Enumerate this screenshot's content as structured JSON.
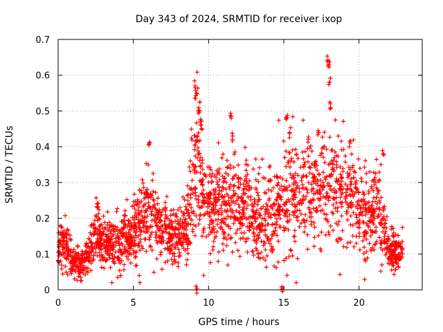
{
  "chart_data": {
    "type": "scatter",
    "title": "Day 343 of 2024, SRMTID for receiver ixop",
    "xlabel": "GPS time / hours",
    "ylabel": "SRMTID / TECUs",
    "xlim": [
      0,
      24.2
    ],
    "ylim": [
      0,
      0.7
    ],
    "xticks": [
      0,
      5,
      10,
      15,
      20
    ],
    "yticks": [
      0,
      0.1,
      0.2,
      0.3,
      0.4,
      0.5,
      0.6,
      0.7
    ],
    "xtick_labels": [
      "0",
      "5",
      "10",
      "15",
      "20"
    ],
    "ytick_labels": [
      "0",
      "0.1",
      "0.2",
      "0.3",
      "0.4",
      "0.5",
      "0.6",
      "0.7"
    ],
    "grid": true,
    "marker": "+",
    "color": "#ff0000",
    "x_range": [
      0,
      22.9
    ],
    "trend": [
      [
        0.0,
        0.12
      ],
      [
        0.5,
        0.13
      ],
      [
        1.0,
        0.08
      ],
      [
        1.5,
        0.07
      ],
      [
        2.0,
        0.1
      ],
      [
        2.5,
        0.17
      ],
      [
        3.0,
        0.13
      ],
      [
        3.5,
        0.13
      ],
      [
        4.0,
        0.13
      ],
      [
        4.5,
        0.14
      ],
      [
        5.0,
        0.16
      ],
      [
        5.5,
        0.19
      ],
      [
        6.0,
        0.22
      ],
      [
        6.5,
        0.18
      ],
      [
        7.0,
        0.17
      ],
      [
        7.5,
        0.14
      ],
      [
        8.0,
        0.15
      ],
      [
        8.5,
        0.16
      ],
      [
        9.0,
        0.33
      ],
      [
        9.3,
        0.38
      ],
      [
        9.6,
        0.26
      ],
      [
        10.0,
        0.22
      ],
      [
        10.5,
        0.24
      ],
      [
        11.0,
        0.23
      ],
      [
        11.5,
        0.25
      ],
      [
        12.0,
        0.22
      ],
      [
        12.5,
        0.24
      ],
      [
        13.0,
        0.2
      ],
      [
        13.5,
        0.18
      ],
      [
        14.0,
        0.2
      ],
      [
        14.5,
        0.22
      ],
      [
        15.0,
        0.25
      ],
      [
        15.5,
        0.27
      ],
      [
        16.0,
        0.27
      ],
      [
        16.5,
        0.28
      ],
      [
        17.0,
        0.27
      ],
      [
        17.5,
        0.28
      ],
      [
        18.0,
        0.3
      ],
      [
        18.5,
        0.29
      ],
      [
        19.0,
        0.28
      ],
      [
        19.5,
        0.25
      ],
      [
        20.0,
        0.23
      ],
      [
        20.5,
        0.21
      ],
      [
        21.0,
        0.22
      ],
      [
        21.5,
        0.2
      ],
      [
        22.0,
        0.12
      ],
      [
        22.5,
        0.1
      ],
      [
        22.9,
        0.11
      ]
    ],
    "peaks": [
      [
        1.5,
        0.035
      ],
      [
        2.6,
        0.23
      ],
      [
        5.9,
        0.28
      ],
      [
        6.05,
        0.41
      ],
      [
        9.1,
        0.57
      ],
      [
        9.2,
        0.55
      ],
      [
        9.35,
        0.5
      ],
      [
        9.5,
        0.46
      ],
      [
        11.5,
        0.48
      ],
      [
        11.6,
        0.43
      ],
      [
        14.9,
        0.005
      ],
      [
        15.2,
        0.48
      ],
      [
        15.4,
        0.44
      ],
      [
        17.3,
        0.44
      ],
      [
        17.9,
        0.64
      ],
      [
        18.0,
        0.63
      ],
      [
        18.05,
        0.58
      ],
      [
        18.1,
        0.52
      ],
      [
        19.4,
        0.41
      ],
      [
        21.6,
        0.38
      ],
      [
        9.2,
        0.0
      ]
    ]
  }
}
